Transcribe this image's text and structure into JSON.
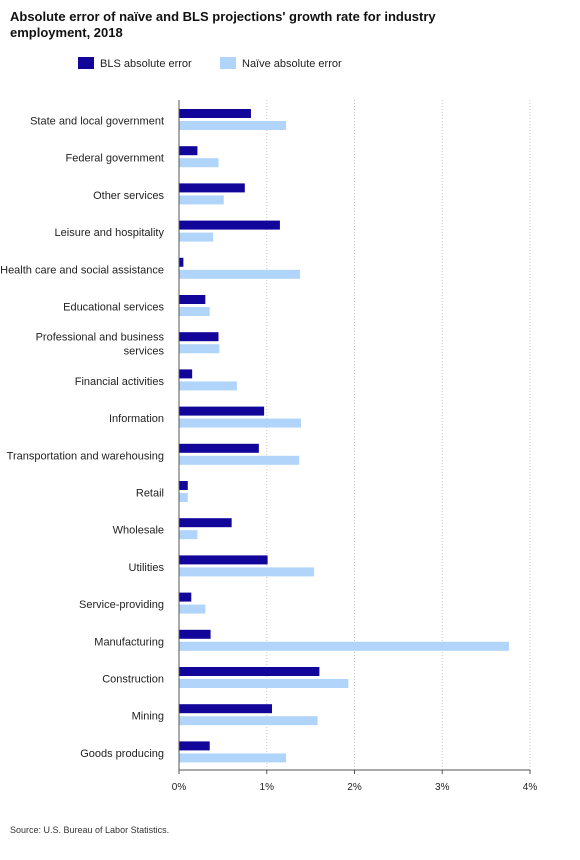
{
  "title": "Absolute error of naïve and BLS projections' growth rate for industry employment, 2018",
  "legend": [
    {
      "name": "BLS absolute error",
      "color": "#12069a"
    },
    {
      "name": "Naïve absolute error",
      "color": "#b0d4fa"
    }
  ],
  "source": "Source: U.S. Bureau of Labor Statistics.",
  "chart_data": {
    "type": "bar",
    "orientation": "horizontal",
    "title": "Absolute error of naïve and BLS projections' growth rate for industry employment, 2018",
    "xlabel": "",
    "ylabel": "",
    "categories": [
      "State and local government",
      "Federal government",
      "Other services",
      "Leisure and hospitality",
      "Health care and social assistance",
      "Educational services",
      "Professional and business services",
      "Financial activities",
      "Information",
      "Transportation and warehousing",
      "Retail",
      "Wholesale",
      "Utilities",
      "Service-providing",
      "Manufacturing",
      "Construction",
      "Mining",
      "Goods producing"
    ],
    "category_display": [
      [
        "State and local government"
      ],
      [
        "Federal government"
      ],
      [
        "Other services"
      ],
      [
        "Leisure and hospitality"
      ],
      [
        "Health care and social assistance"
      ],
      [
        "Educational services"
      ],
      [
        "Professional and business",
        "services"
      ],
      [
        "Financial activities"
      ],
      [
        "Information"
      ],
      [
        "Transportation and warehousing"
      ],
      [
        "Retail"
      ],
      [
        "Wholesale"
      ],
      [
        "Utilities"
      ],
      [
        "Service-providing"
      ],
      [
        "Manufacturing"
      ],
      [
        "Construction"
      ],
      [
        "Mining"
      ],
      [
        "Goods producing"
      ]
    ],
    "series": [
      {
        "name": "BLS absolute error",
        "color": "#12069a",
        "values": [
          0.82,
          0.21,
          0.75,
          1.15,
          0.05,
          0.3,
          0.45,
          0.15,
          0.97,
          0.91,
          0.1,
          0.6,
          1.01,
          0.14,
          0.36,
          1.6,
          1.06,
          0.35
        ]
      },
      {
        "name": "Naïve absolute error",
        "color": "#b0d4fa",
        "values": [
          1.22,
          0.45,
          0.51,
          0.39,
          1.38,
          0.35,
          0.46,
          0.66,
          1.39,
          1.37,
          0.1,
          0.21,
          1.54,
          0.3,
          3.76,
          1.93,
          1.58,
          1.22
        ]
      }
    ],
    "xlim": [
      0,
      4
    ],
    "xticks": [
      0,
      1,
      2,
      3,
      4
    ],
    "xtick_labels": [
      "0%",
      "1%",
      "2%",
      "3%",
      "4%"
    ],
    "unit": "%",
    "grid": "vertical dotted",
    "legend_position": "top-left"
  }
}
